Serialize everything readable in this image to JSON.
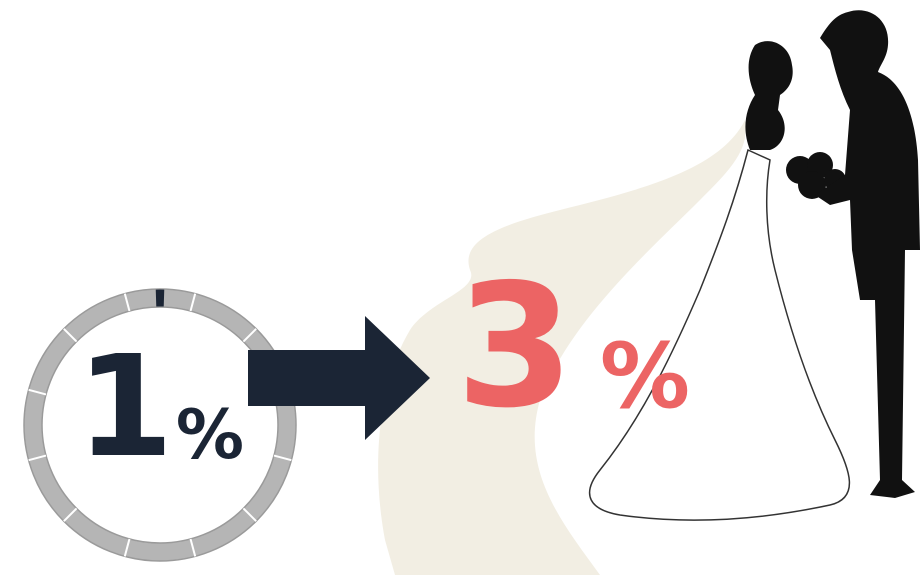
{
  "before": {
    "value": 1,
    "unit": "%"
  },
  "after": {
    "value": 3,
    "unit": "%"
  }
}
